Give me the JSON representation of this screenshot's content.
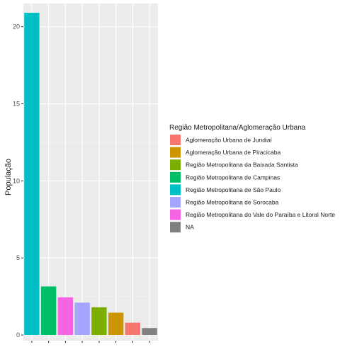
{
  "chart_data": {
    "type": "bar",
    "ylabel": "População",
    "xlabel": "",
    "ylim": [
      0,
      21.5
    ],
    "yticks": [
      0,
      5,
      10,
      15,
      20
    ],
    "grid": true,
    "legend_position": "right",
    "legend_title": "Região Metropolitana/Aglomeração Urbana",
    "categories": [
      "Aglomeração Urbana de Jundiaí",
      "Aglomeração Urbana de Piracicaba",
      "Região Metropolitana da Baixada Santista",
      "Região Metropolitana de Campinas",
      "Região Metropolitana de São Paulo",
      "Região Metropolitana de Sorocaba",
      "Região Metropolitana do Vale do Paraíba e Litoral Norte",
      "NA"
    ],
    "colors": [
      "#F8766D",
      "#CD9600",
      "#7CAE00",
      "#00BE67",
      "#00BFC4",
      "#A3A5FF",
      "#F564E3",
      "#808080"
    ],
    "bars": [
      {
        "category": "Região Metropolitana de São Paulo",
        "value": 20.9
      },
      {
        "category": "Região Metropolitana de Campinas",
        "value": 3.15
      },
      {
        "category": "Região Metropolitana do Vale do Paraíba e Litoral Norte",
        "value": 2.45
      },
      {
        "category": "Região Metropolitana de Sorocaba",
        "value": 2.1
      },
      {
        "category": "Região Metropolitana da Baixada Santista",
        "value": 1.8
      },
      {
        "category": "Aglomeração Urbana de Piracicaba",
        "value": 1.45
      },
      {
        "category": "Aglomeração Urbana de Jundiaí",
        "value": 0.8
      },
      {
        "category": "NA",
        "value": 0.45
      }
    ]
  }
}
